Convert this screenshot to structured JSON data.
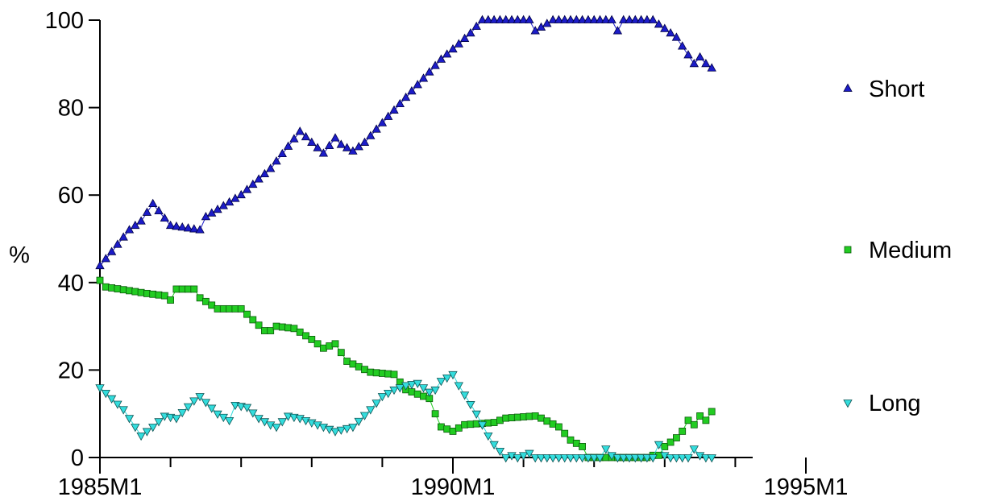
{
  "chart_data": {
    "type": "scatter",
    "title": "",
    "xlabel": "",
    "ylabel": "%",
    "x_start": "1985M1",
    "x_end": "1995M5",
    "x_ticks": [
      "1985M1",
      "1990M1",
      "1995M1"
    ],
    "y_ticks": [
      "0",
      "20",
      "40",
      "60",
      "80",
      "100"
    ],
    "ylim": [
      0,
      100
    ],
    "grid": false,
    "legend_position": "right",
    "series": [
      {
        "name": "Short",
        "marker": "triangle-up",
        "color": "#1c1cc8",
        "knots": [
          [
            0,
            43.8
          ],
          [
            2,
            47
          ],
          [
            5,
            52
          ],
          [
            7,
            54
          ],
          [
            9,
            58
          ],
          [
            12,
            53
          ],
          [
            17,
            52
          ],
          [
            18,
            55
          ],
          [
            24,
            60
          ],
          [
            29,
            66
          ],
          [
            34,
            74.5
          ],
          [
            38,
            69.5
          ],
          [
            40,
            73
          ],
          [
            41,
            71.5
          ],
          [
            43,
            70
          ],
          [
            45,
            72
          ],
          [
            47,
            75
          ],
          [
            58,
            91
          ],
          [
            61,
            94.5
          ],
          [
            63,
            97
          ],
          [
            65,
            100
          ],
          [
            73,
            100
          ],
          [
            74,
            97.5
          ],
          [
            77,
            100
          ],
          [
            87,
            100
          ],
          [
            88,
            97.5
          ],
          [
            89,
            100
          ],
          [
            94,
            100
          ],
          [
            98,
            96
          ],
          [
            101,
            90
          ],
          [
            102,
            91.5
          ],
          [
            103,
            90
          ],
          [
            104,
            89
          ]
        ]
      },
      {
        "name": "Medium",
        "marker": "square",
        "color": "#22cc22",
        "knots": [
          [
            0,
            40.5
          ],
          [
            1,
            39
          ],
          [
            8,
            37.5
          ],
          [
            11,
            37
          ],
          [
            12,
            36
          ],
          [
            13,
            38.5
          ],
          [
            16,
            38.5
          ],
          [
            17,
            36.5
          ],
          [
            20,
            34
          ],
          [
            24,
            34
          ],
          [
            28,
            29
          ],
          [
            29,
            29
          ],
          [
            30,
            30
          ],
          [
            33,
            29.5
          ],
          [
            36,
            27
          ],
          [
            38,
            25
          ],
          [
            40,
            26
          ],
          [
            42,
            22
          ],
          [
            46,
            19.5
          ],
          [
            50,
            19
          ],
          [
            52,
            15.5
          ],
          [
            55,
            14
          ],
          [
            56,
            13.5
          ],
          [
            57,
            10
          ],
          [
            58,
            7
          ],
          [
            60,
            6
          ],
          [
            62,
            7.5
          ],
          [
            67,
            8
          ],
          [
            69,
            9
          ],
          [
            74,
            9.5
          ],
          [
            75,
            9
          ],
          [
            78,
            7
          ],
          [
            80,
            4
          ],
          [
            82,
            2.5
          ],
          [
            83,
            0
          ],
          [
            93,
            0
          ],
          [
            94,
            0.5
          ],
          [
            95,
            0.5
          ],
          [
            96,
            2.5
          ],
          [
            97,
            3.5
          ],
          [
            98,
            4.5
          ],
          [
            99,
            6
          ],
          [
            100,
            8.5
          ],
          [
            101,
            7.5
          ],
          [
            102,
            9.5
          ],
          [
            103,
            8.5
          ],
          [
            104,
            10.5
          ]
        ]
      },
      {
        "name": "Long",
        "marker": "triangle-down",
        "color": "#33dddd",
        "knots": [
          [
            0,
            16
          ],
          [
            2,
            13.5
          ],
          [
            4,
            11
          ],
          [
            6,
            7
          ],
          [
            7,
            5
          ],
          [
            9,
            7
          ],
          [
            11,
            9.5
          ],
          [
            13,
            9
          ],
          [
            16,
            13
          ],
          [
            17,
            14
          ],
          [
            20,
            10
          ],
          [
            22,
            8.5
          ],
          [
            23,
            12
          ],
          [
            25,
            11.5
          ],
          [
            27,
            9
          ],
          [
            29,
            7.5
          ],
          [
            30,
            7
          ],
          [
            32,
            9.5
          ],
          [
            34,
            9
          ],
          [
            38,
            7
          ],
          [
            40,
            6
          ],
          [
            43,
            7
          ],
          [
            46,
            11
          ],
          [
            48,
            14
          ],
          [
            50,
            15.5
          ],
          [
            52,
            16.5
          ],
          [
            54,
            17
          ],
          [
            56,
            15
          ],
          [
            57,
            15.5
          ],
          [
            58,
            17.5
          ],
          [
            60,
            19
          ],
          [
            61,
            16.5
          ],
          [
            64,
            10
          ],
          [
            66,
            5
          ],
          [
            67,
            3
          ],
          [
            69,
            0
          ],
          [
            70,
            0.5
          ],
          [
            71,
            0
          ],
          [
            73,
            1
          ],
          [
            74,
            0
          ],
          [
            83,
            0
          ],
          [
            85,
            0
          ],
          [
            86,
            2
          ],
          [
            87,
            0.5
          ],
          [
            88,
            0
          ],
          [
            94,
            0
          ],
          [
            95,
            3
          ],
          [
            96,
            0.5
          ],
          [
            97,
            0
          ],
          [
            100,
            0
          ],
          [
            101,
            2
          ],
          [
            102,
            0.5
          ],
          [
            103,
            0
          ],
          [
            104,
            0
          ]
        ]
      }
    ]
  }
}
